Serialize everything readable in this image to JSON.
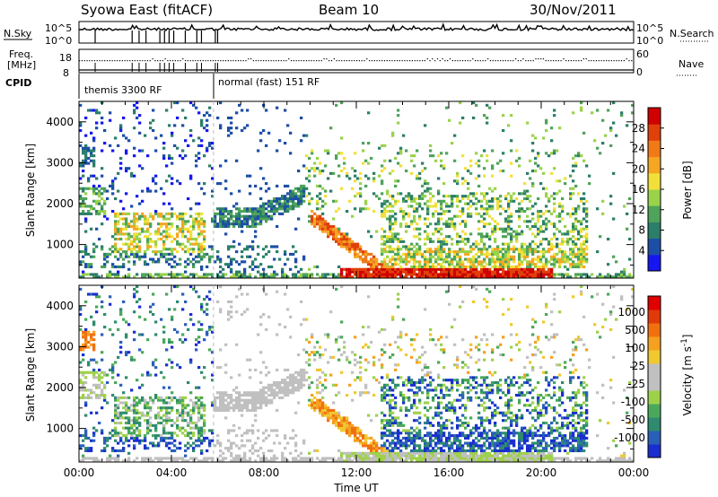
{
  "header": {
    "station": "Syowa East (fitACF)",
    "beam": "Beam 10",
    "date": "30/Nov/2011"
  },
  "top_panels": {
    "nsky_label": "N.Sky",
    "nsky_ticks": [
      "10^5",
      "10^0"
    ],
    "nsearch_label": "N.Search",
    "nsearch_ticks": [
      "10^5",
      "10^0"
    ],
    "freq_label_1": "Freq.",
    "freq_label_2": "[MHz]",
    "freq_ticks": [
      "18",
      "8"
    ],
    "nave_label": "Nave",
    "nave_ticks": [
      "60",
      "0"
    ],
    "cpid_label": "CPID",
    "cpid_modes": [
      {
        "name": "themis 3300 RF",
        "start_hour": 0.0,
        "end_hour": 5.8
      },
      {
        "name": "normal (fast) 151 RF",
        "start_hour": 5.8,
        "end_hour": 24.0
      }
    ]
  },
  "chart_data": [
    {
      "type": "heatmap",
      "ylabel": "Slant Range [km]",
      "xlabel": "",
      "xlim": [
        0,
        24
      ],
      "ylim": [
        180,
        4500
      ],
      "yticks": [
        "1000",
        "2000",
        "3000",
        "4000"
      ],
      "colorbar": {
        "label": "Power [dB]",
        "ticks": [
          "4",
          "8",
          "12",
          "16",
          "20",
          "24",
          "28"
        ],
        "colors": [
          "#1616f0",
          "#1c4ea6",
          "#2b7e6a",
          "#4fa35a",
          "#9ad24a",
          "#f2e03a",
          "#f5a623",
          "#f07a18",
          "#e0400a",
          "#d00000"
        ]
      }
    },
    {
      "type": "heatmap",
      "ylabel": "Slant Range [km]",
      "xlabel": "Time UT",
      "xlim": [
        0,
        24
      ],
      "ylim": [
        180,
        4500
      ],
      "yticks": [
        "1000",
        "2000",
        "3000",
        "4000"
      ],
      "xticks": [
        "00:00",
        "04:00",
        "08:00",
        "12:00",
        "16:00",
        "20:00",
        "00:00"
      ],
      "colorbar": {
        "label": "Velocity [m s^-1]",
        "ticks": [
          "1000",
          "500",
          "100",
          "25",
          "-25",
          "-100",
          "-500",
          "-1000"
        ],
        "colors": [
          "#1a2ecf",
          "#2a5fb8",
          "#2f8b6f",
          "#4aa85a",
          "#9ed14a",
          "#c0c0c0",
          "#c0c0c0",
          "#f0c830",
          "#f5a020",
          "#f07010",
          "#e03a0a",
          "#e00000"
        ]
      }
    }
  ]
}
